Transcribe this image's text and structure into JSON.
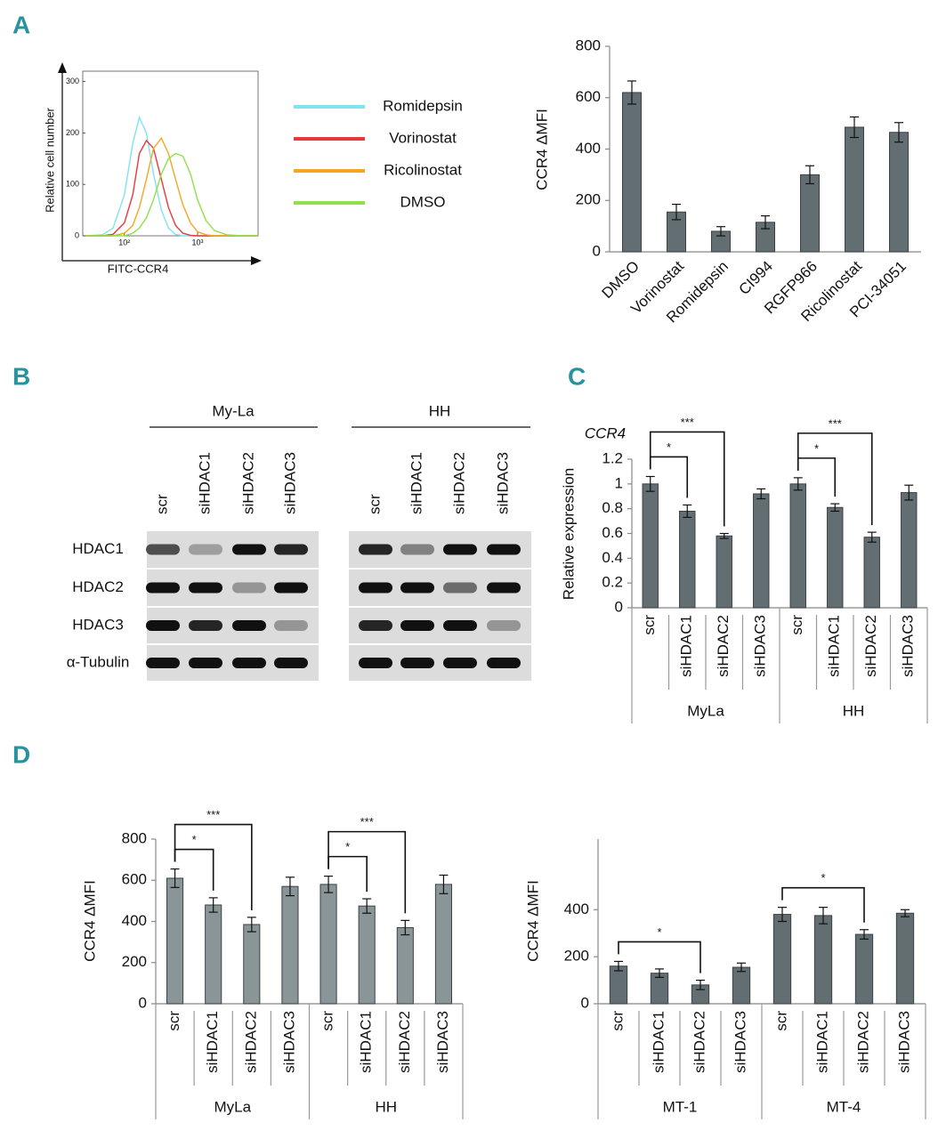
{
  "panel_labels": [
    "A",
    "B",
    "C",
    "D"
  ],
  "chart_data": [
    {
      "type": "line",
      "log_x": true,
      "y_label": "Relative cell number",
      "x_label": "FITC-CCR4",
      "x": [
        30,
        50,
        70,
        100,
        130,
        160,
        200,
        250,
        320,
        400,
        500,
        630,
        800,
        1000,
        1300,
        1700,
        2500,
        4000,
        6700
      ],
      "xlim": [
        27,
        6700
      ],
      "xticks": [
        {
          "value": 100,
          "label": "10²"
        },
        {
          "value": 1000,
          "label": "10³"
        }
      ],
      "ylim": [
        0,
        320
      ],
      "yticks": [
        0,
        100,
        200,
        300
      ],
      "series": [
        {
          "name": "Romidepsin",
          "color": "#7fe3f0",
          "values": [
            0,
            2,
            15,
            80,
            180,
            230,
            200,
            120,
            50,
            15,
            3,
            0,
            0,
            0,
            0,
            0,
            0,
            0,
            0
          ]
        },
        {
          "name": "Vorinostat",
          "color": "#e8383d",
          "values": [
            0,
            0,
            3,
            25,
            80,
            160,
            185,
            170,
            110,
            55,
            20,
            5,
            1,
            0,
            0,
            0,
            0,
            0,
            0
          ]
        },
        {
          "name": "Ricolinostat",
          "color": "#f5a623",
          "values": [
            0,
            0,
            0,
            5,
            20,
            55,
            110,
            170,
            190,
            160,
            110,
            60,
            25,
            8,
            2,
            0,
            0,
            0,
            0
          ]
        },
        {
          "name": "DMSO",
          "color": "#8fe04a",
          "values": [
            0,
            0,
            0,
            0,
            5,
            15,
            35,
            70,
            120,
            150,
            160,
            155,
            120,
            70,
            30,
            10,
            2,
            0,
            0
          ]
        }
      ]
    },
    {
      "type": "bar",
      "y_label": "CCR4 ΔMFI",
      "color": "#636e73",
      "categories": [
        "DMSO",
        "Vorinostat",
        "Romidepsin",
        "CI994",
        "RGFP966",
        "Ricolinostat",
        "PCI-34051"
      ],
      "values": [
        620,
        155,
        80,
        115,
        300,
        485,
        465
      ],
      "errors": [
        45,
        30,
        18,
        25,
        35,
        40,
        38
      ],
      "ylim": [
        0,
        800
      ],
      "yticks": [
        0,
        200,
        400,
        600,
        800
      ]
    },
    {
      "type": "bar",
      "y_label": "Relative expression",
      "annotation": "CCR4",
      "color": "#636e73",
      "categories": [
        "scr",
        "siHDAC1",
        "siHDAC2",
        "siHDAC3",
        "scr",
        "siHDAC1",
        "siHDAC2",
        "siHDAC3"
      ],
      "groups": [
        "MyLa",
        "HH"
      ],
      "values": [
        1.0,
        0.78,
        0.58,
        0.92,
        1.0,
        0.81,
        0.57,
        0.93
      ],
      "errors": [
        0.06,
        0.05,
        0.02,
        0.04,
        0.05,
        0.03,
        0.04,
        0.06
      ],
      "ylim": [
        0,
        1.2
      ],
      "yticks": [
        0,
        0.2,
        0.4,
        0.6,
        0.8,
        1,
        1.2
      ],
      "brackets": [
        {
          "from": 0,
          "to": 1,
          "label": "*"
        },
        {
          "from": 0,
          "to": 2,
          "label": "***"
        },
        {
          "from": 4,
          "to": 5,
          "label": "*"
        },
        {
          "from": 4,
          "to": 6,
          "label": "***"
        }
      ]
    },
    {
      "type": "bar",
      "y_label": "CCR4 ΔMFI",
      "color": "#8a9598",
      "categories": [
        "scr",
        "siHDAC1",
        "siHDAC2",
        "siHDAC3",
        "scr",
        "siHDAC1",
        "siHDAC2",
        "siHDAC3"
      ],
      "groups": [
        "MyLa",
        "HH"
      ],
      "values": [
        610,
        480,
        385,
        570,
        580,
        475,
        370,
        580
      ],
      "errors": [
        45,
        35,
        35,
        45,
        40,
        35,
        35,
        45
      ],
      "ylim": [
        0,
        800
      ],
      "yticks": [
        0,
        200,
        400,
        600,
        800
      ],
      "brackets": [
        {
          "from": 0,
          "to": 1,
          "label": "*"
        },
        {
          "from": 0,
          "to": 2,
          "label": "***"
        },
        {
          "from": 4,
          "to": 5,
          "label": "*"
        },
        {
          "from": 4,
          "to": 6,
          "label": "***"
        }
      ]
    },
    {
      "type": "bar",
      "y_label": "CCR4 ΔMFI",
      "color": "#636e73",
      "categories": [
        "scr",
        "siHDAC1",
        "siHDAC2",
        "siHDAC3",
        "scr",
        "siHDAC1",
        "siHDAC2",
        "siHDAC3"
      ],
      "groups": [
        "MT-1",
        "MT-4"
      ],
      "values": [
        160,
        130,
        80,
        155,
        380,
        375,
        295,
        385
      ],
      "errors": [
        20,
        18,
        20,
        18,
        30,
        35,
        20,
        15
      ],
      "ylim": [
        0,
        700
      ],
      "yticks": [
        0,
        200,
        400
      ],
      "brackets": [
        {
          "from": 0,
          "to": 2,
          "label": "*"
        },
        {
          "from": 4,
          "to": 6,
          "label": "*"
        }
      ]
    }
  ],
  "blot": {
    "cell_lines": [
      "My-La",
      "HH"
    ],
    "lanes": [
      "scr",
      "siHDAC1",
      "siHDAC2",
      "siHDAC3"
    ],
    "proteins": [
      "HDAC1",
      "HDAC2",
      "HDAC3",
      "α-Tubulin"
    ]
  }
}
